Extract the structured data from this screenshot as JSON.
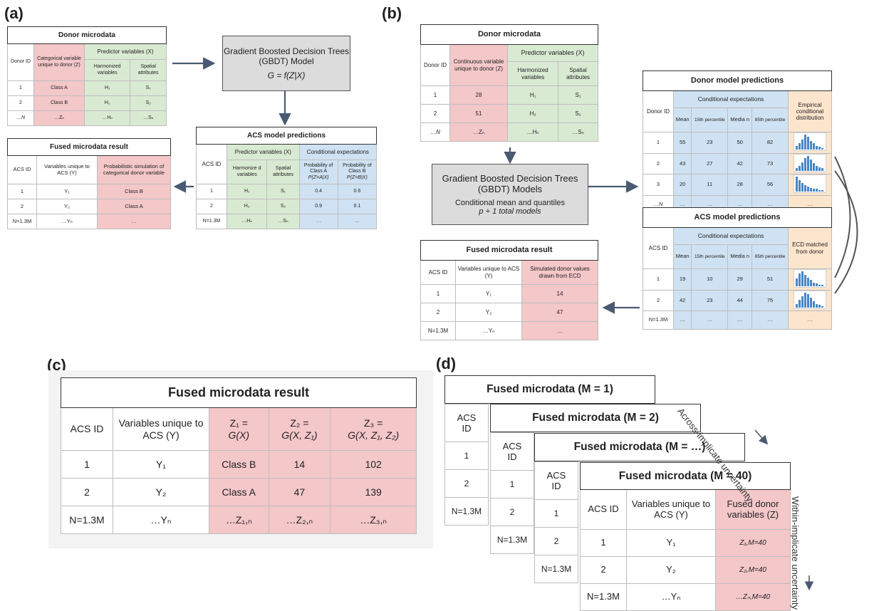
{
  "panels": {
    "a": "(a)",
    "b": "(b)",
    "c": "(c)",
    "d": "(d)"
  },
  "a": {
    "donor": {
      "title": "Donor microdata",
      "donor_id": "Donor ID",
      "z_header": "Categorical variable unique to donor (Z)",
      "x_header": "Predictor variables (X)",
      "harm": "Harmonized variables",
      "spat": "Spatial attributes",
      "rows": [
        [
          "1",
          "Class A",
          "H₁",
          "S₁"
        ],
        [
          "2",
          "Class B",
          "H₂",
          "S₂"
        ],
        [
          "…N",
          "…Zₙ",
          "…Hₙ",
          "…Sₙ"
        ]
      ]
    },
    "gbdt": {
      "line1": "Gradient Boosted Decision Trees",
      "line2": "(GBDT) Model",
      "formula": "G = f(Z|X)"
    },
    "acs": {
      "title": "ACS model predictions",
      "acs_id": "ACS ID",
      "x_header": "Predictor variables (X)",
      "ce_header": "Conditional expectations",
      "harm": "Harmonize d variables",
      "spat": "Spatial attributes",
      "pa": "Probability of Class A",
      "pa_f": "P(Z=A|X)",
      "pb": "Probability of Class B",
      "pb_f": "P(Z=B|X)",
      "rows": [
        [
          "1",
          "H₁",
          "S₁",
          "0.4",
          "0.6"
        ],
        [
          "2",
          "H₂",
          "S₂",
          "0.9",
          "0.1"
        ],
        [
          "N=1.3M",
          "…Hₙ",
          "…Sₙ",
          "…",
          "…"
        ]
      ]
    },
    "fused": {
      "title": "Fused microdata result",
      "acs_id": "ACS ID",
      "y_header": "Variables unique to ACS (Y)",
      "z_header": "Probabilistic simulation of categorical donor variable",
      "rows": [
        [
          "1",
          "Y₁",
          "Class B"
        ],
        [
          "2",
          "Y₂",
          "Class A"
        ],
        [
          "N=1.3M",
          "…Yₙ",
          "…"
        ]
      ]
    }
  },
  "b": {
    "donor": {
      "title": "Donor microdata",
      "donor_id": "Donor ID",
      "z_header": "Continuous variable unique to donor (Z)",
      "x_header": "Predictor variables (X)",
      "harm": "Harmonized variables",
      "spat": "Spatial attributes",
      "rows": [
        [
          "1",
          "28",
          "H₁",
          "S₁"
        ],
        [
          "2",
          "51",
          "H₂",
          "S₂"
        ],
        [
          "…N",
          "…Zₙ",
          "…Hₙ",
          "…Sₙ"
        ]
      ]
    },
    "gbdt": {
      "line1": "Gradient Boosted Decision Trees",
      "line2": "(GBDT) Models",
      "line3": "Conditional mean and quantiles",
      "line4": "p + 1 total models"
    },
    "donor_pred": {
      "title": "Donor model predictions",
      "donor_id": "Donor ID",
      "ce_header": "Conditional expectations",
      "mean": "Mean",
      "p15": "15th percentile",
      "median": "Media n",
      "p85": "85th percentile",
      "ecd": "Empirical conditional distribution",
      "rows": [
        [
          "1",
          "55",
          "23",
          "50",
          "82"
        ],
        [
          "2",
          "43",
          "27",
          "42",
          "73"
        ],
        [
          "3",
          "20",
          "11",
          "28",
          "56"
        ],
        [
          "…N",
          "…",
          "…",
          "…",
          "…"
        ]
      ],
      "last_ecd": "…"
    },
    "acs_pred": {
      "title": "ACS model predictions",
      "acs_id": "ACS ID",
      "ce_header": "Conditional expectations",
      "mean": "Mean",
      "p15": "15th percentile",
      "median": "Media n",
      "p85": "85th percentile",
      "ecd": "ECD matched from donor",
      "rows": [
        [
          "1",
          "19",
          "10",
          "29",
          "51"
        ],
        [
          "2",
          "42",
          "23",
          "44",
          "75"
        ],
        [
          "N=1.3M",
          "…",
          "…",
          "…",
          "…"
        ]
      ],
      "last_ecd": "…"
    },
    "fused": {
      "title": "Fused microdata result",
      "acs_id": "ACS ID",
      "y_header": "Variables unique to ACS (Y)",
      "z_header": "Simulated donor values drawn from ECD",
      "rows": [
        [
          "1",
          "Y₁",
          "14"
        ],
        [
          "2",
          "Y₂",
          "47"
        ],
        [
          "N=1.3M",
          "…Yₙ",
          "…"
        ]
      ]
    }
  },
  "c": {
    "title": "Fused microdata result",
    "acs_id": "ACS ID",
    "y_header": "Variables unique to ACS (Y)",
    "z1_a": "Z₁ =",
    "z1_b": "G(X)",
    "z2_a": "Z₂ =",
    "z2_b": "G(X, Z₁)",
    "z3_a": "Z₃ =",
    "z3_b": "G(X, Z₁, Z₂)",
    "rows": [
      [
        "1",
        "Y₁",
        "Class B",
        "14",
        "102"
      ],
      [
        "2",
        "Y₂",
        "Class A",
        "47",
        "139"
      ],
      [
        "N=1.3M",
        "…Yₙ",
        "…Z₁,ₙ",
        "…Z₂,ₙ",
        "…Z₃,ₙ"
      ]
    ]
  },
  "d": {
    "cards": [
      {
        "title": "Fused microdata (M = 1)",
        "acs": "ACS ID",
        "rows": [
          "1",
          "2",
          "N=1.3M"
        ]
      },
      {
        "title": "Fused microdata (M = 2)",
        "acs": "ACS ID",
        "rows": [
          "1",
          "2",
          "N=1.3M"
        ]
      },
      {
        "title": "Fused microdata (M = …)",
        "acs": "ACS ID",
        "rows": [
          "1",
          "2",
          "N=1.3M"
        ]
      }
    ],
    "front": {
      "title": "Fused microdata (M = 40)",
      "acs_id": "ACS ID",
      "y_header": "Variables unique to ACS (Y)",
      "z_header": "Fused donor variables (Z)",
      "rows": [
        [
          "1",
          "Y₁",
          "Z₁,M=40"
        ],
        [
          "2",
          "Y₂",
          "Z₂,M=40"
        ],
        [
          "N=1.3M",
          "…Yₙ",
          "…Zₙ,M=40"
        ]
      ]
    },
    "across": "Across-implicate uncertainty",
    "within": "Within-implicate uncertainty"
  },
  "colors": {
    "pink": "#f4c7c9",
    "green": "#d9ead3",
    "blue": "#cfe2f3",
    "orange": "#fce5cd",
    "arrow": "#4a5a72",
    "hist": "#4a86c6"
  }
}
